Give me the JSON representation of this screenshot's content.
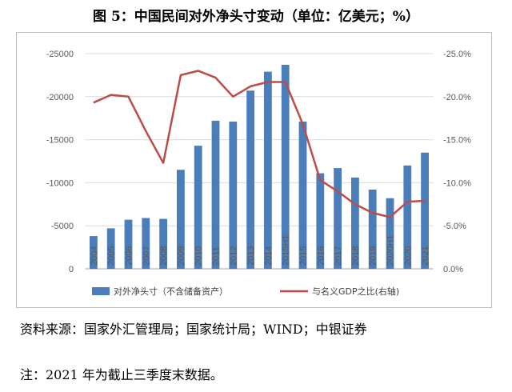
{
  "title": "图 5：中国民间对外净头寸变动（单位：亿美元；%）",
  "source": "资料来源：国家外汇管理局；国家统计局；WIND；中银证券",
  "note": "注：2021 年为截止三季度末数据。",
  "colors": {
    "bar": "#4a7ebb",
    "line": "#be4b48",
    "axis": "#595959",
    "grid": "#d9d9d9"
  },
  "chart_data": {
    "type": "bar+line",
    "categories": [
      "2004",
      "2005",
      "2006",
      "2007",
      "2008",
      "2009",
      "2010",
      "2011",
      "2012",
      "2013",
      "2014",
      "2015H1",
      "2015",
      "2016",
      "2017",
      "2018",
      "2019",
      "2020H1",
      "2020",
      "2021"
    ],
    "series": [
      {
        "name": "对外净头寸（不含储备资产）",
        "type": "bar",
        "axis": "left",
        "values": [
          -3800,
          -4700,
          -5700,
          -5900,
          -5800,
          -11500,
          -14300,
          -17200,
          -17100,
          -20700,
          -22900,
          -23700,
          -17100,
          -11100,
          -11700,
          -10600,
          -9200,
          -8200,
          -12000,
          -13500
        ]
      },
      {
        "name": "与名义GDP之比(右轴)",
        "type": "line",
        "axis": "right",
        "values": [
          -19.3,
          -20.2,
          -20.0,
          -16.0,
          -12.3,
          -22.5,
          -23.0,
          -22.2,
          -20.0,
          -21.2,
          -21.7,
          -21.7,
          -16.8,
          -10.3,
          -9.0,
          -7.5,
          -6.5,
          -6.0,
          -7.8,
          -7.9
        ]
      }
    ],
    "y_left": {
      "min": 0,
      "max": -25000,
      "ticks": [
        "-25000",
        "-20000",
        "-15000",
        "-10000",
        "-5000",
        "0"
      ]
    },
    "y_right": {
      "min": 0,
      "max": -25,
      "ticks": [
        "-25.0%",
        "-20.0%",
        "-15.0%",
        "-10.0%",
        "-5.0%",
        "0.0%"
      ]
    },
    "grid": true,
    "legend_position": "bottom"
  }
}
